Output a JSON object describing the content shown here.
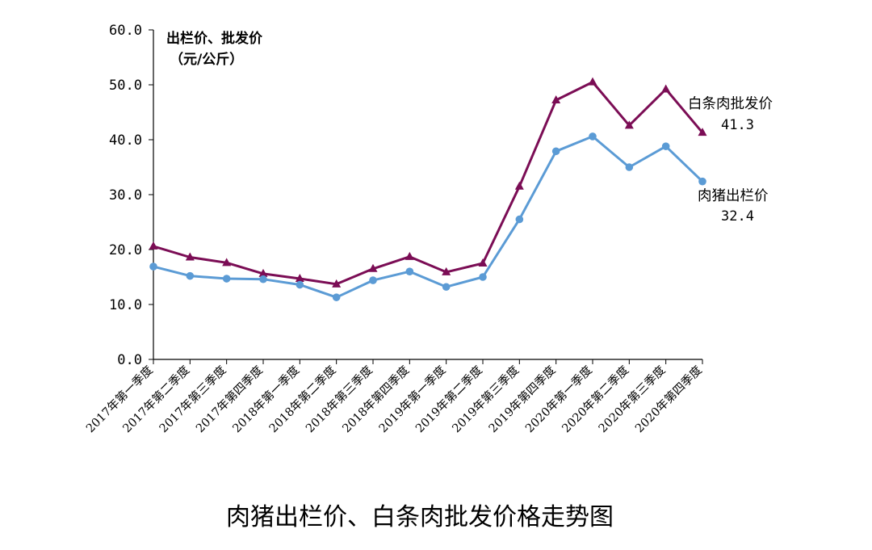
{
  "chart_data": {
    "type": "line",
    "title": "肉猪出栏价、白条肉批发价格走势图",
    "ylabel_line1": "出栏价、批发价",
    "ylabel_line2": "（元/公斤）",
    "ylim": [
      0,
      60
    ],
    "yticks": [
      "0.0",
      "10.0",
      "20.0",
      "30.0",
      "40.0",
      "50.0",
      "60.0"
    ],
    "grid": false,
    "categories": [
      "2017年第一季度",
      "2017年第二季度",
      "2017年第三季度",
      "2017年第四季度",
      "2018年第一季度",
      "2018年第二季度",
      "2018年第三季度",
      "2018年第四季度",
      "2019年第一季度",
      "2019年第二季度",
      "2019年第三季度",
      "2019年第四季度",
      "2020年第一季度",
      "2020年第二季度",
      "2020年第三季度",
      "2020年第四季度"
    ],
    "series": [
      {
        "name": "白条肉批发价",
        "last_value_label": "41.3",
        "color": "#7b0d55",
        "marker": "triangle",
        "values": [
          20.6,
          18.6,
          17.6,
          15.6,
          14.7,
          13.7,
          16.5,
          18.7,
          15.9,
          17.5,
          31.5,
          47.2,
          50.5,
          42.6,
          49.2,
          41.3
        ]
      },
      {
        "name": "肉猪出栏价",
        "last_value_label": "32.4",
        "color": "#5b9bd5",
        "marker": "circle",
        "values": [
          16.9,
          15.2,
          14.7,
          14.6,
          13.6,
          11.3,
          14.4,
          16.0,
          13.2,
          15.0,
          25.5,
          37.9,
          40.6,
          35.0,
          38.8,
          32.4
        ]
      }
    ]
  }
}
